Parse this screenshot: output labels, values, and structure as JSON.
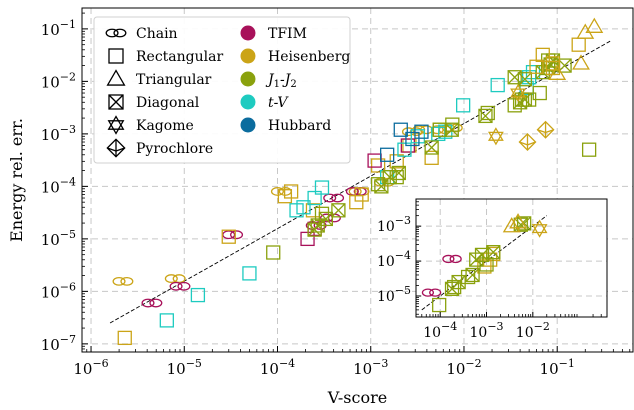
{
  "chart_data": {
    "type": "scatter",
    "xlabel": "V-score",
    "ylabel": "Energy rel. err.",
    "xscale": "log",
    "yscale": "log",
    "xlim": [
      8e-07,
      0.65
    ],
    "ylim": [
      7e-08,
      0.25
    ],
    "x_ticks": [
      {
        "value": 1e-06,
        "mant": "10",
        "exp": "−6"
      },
      {
        "value": 1e-05,
        "mant": "10",
        "exp": "−5"
      },
      {
        "value": 0.0001,
        "mant": "10",
        "exp": "−4"
      },
      {
        "value": 0.001,
        "mant": "10",
        "exp": "−3"
      },
      {
        "value": 0.01,
        "mant": "10",
        "exp": "−2"
      },
      {
        "value": 0.1,
        "mant": "10",
        "exp": "−1"
      }
    ],
    "y_ticks": [
      {
        "value": 1e-07,
        "mant": "10",
        "exp": "−7"
      },
      {
        "value": 1e-06,
        "mant": "10",
        "exp": "−6"
      },
      {
        "value": 1e-05,
        "mant": "10",
        "exp": "−5"
      },
      {
        "value": 0.0001,
        "mant": "10",
        "exp": "−4"
      },
      {
        "value": 0.001,
        "mant": "10",
        "exp": "−3"
      },
      {
        "value": 0.01,
        "mant": "10",
        "exp": "−2"
      },
      {
        "value": 0.1,
        "mant": "10",
        "exp": "−1"
      }
    ],
    "grid": true,
    "fit_line": {
      "style": "dashed",
      "x": [
        1.6e-06,
        0.38
      ],
      "y": [
        2.5e-07,
        0.06
      ]
    },
    "legend": {
      "placement": "top-left",
      "shapes": [
        {
          "label": "Chain",
          "marker": "chain"
        },
        {
          "label": "Rectangular",
          "marker": "square"
        },
        {
          "label": "Triangular",
          "marker": "triangle"
        },
        {
          "label": "Diagonal",
          "marker": "diagonal"
        },
        {
          "label": "Kagome",
          "marker": "kagome"
        },
        {
          "label": "Pyrochlore",
          "marker": "pyrochlore"
        }
      ],
      "models": [
        {
          "label": "TFIM",
          "color": "#a8115a"
        },
        {
          "label": "Heisenberg",
          "color": "#cba417"
        },
        {
          "label": "J",
          "sub1": "1",
          "mid": "-J",
          "sub2": "2",
          "italic": true,
          "color": "#8aa10d"
        },
        {
          "label": "t-V",
          "italic": true,
          "color": "#1ecbc0"
        },
        {
          "label": "Hubbard",
          "color": "#0b6c9e"
        }
      ]
    },
    "series": [
      {
        "model": "Heisenberg",
        "marker": "chain",
        "points": [
          [
            2.2e-06,
            1.55e-06
          ],
          [
            8e-06,
            1.75e-06
          ],
          [
            0.00011,
            8e-05
          ],
          [
            0.00075,
            8e-05
          ],
          [
            0.0014,
            0.00012
          ],
          [
            0.0028,
            0.0011
          ],
          [
            0.0036,
            0.0012
          ],
          [
            0.0057,
            0.0012
          ],
          [
            0.0075,
            0.0013
          ]
        ]
      },
      {
        "model": "TFIM",
        "marker": "chain",
        "points": [
          [
            4.5e-06,
            6e-07
          ],
          [
            9e-06,
            1.25e-06
          ],
          [
            3.3e-05,
            1.2e-05
          ],
          [
            0.00026,
            1.8e-05
          ],
          [
            0.00037,
            2.5e-05
          ],
          [
            0.0004,
            6e-05
          ],
          [
            0.0007,
            8e-05
          ]
        ]
      },
      {
        "model": "Heisenberg",
        "marker": "square",
        "points": [
          [
            2.3e-06,
            1.3e-07
          ],
          [
            3e-05,
            1.1e-05
          ],
          [
            0.00012,
            6.5e-05
          ],
          [
            0.00014,
            8e-05
          ],
          [
            0.00024,
            3.5e-05
          ],
          [
            0.0007,
            5e-05
          ],
          [
            0.0008,
            7e-05
          ],
          [
            0.0012,
            0.00025
          ],
          [
            0.0019,
            0.0003
          ],
          [
            0.0026,
            0.0006
          ],
          [
            0.0045,
            0.00035
          ],
          [
            0.0055,
            0.0012
          ]
        ]
      },
      {
        "model": "TFIM",
        "marker": "square",
        "points": [
          [
            0.00021,
            1e-05
          ],
          [
            0.00025,
            1.55e-05
          ],
          [
            0.0011,
            0.00031
          ],
          [
            0.0025,
            0.0006
          ]
        ]
      },
      {
        "model": "t-V",
        "marker": "square",
        "points": [
          [
            6.5e-06,
            2.8e-07
          ],
          [
            1.4e-05,
            8.5e-07
          ],
          [
            5e-05,
            2.2e-06
          ],
          [
            0.00016,
            3.5e-05
          ],
          [
            0.00019,
            4e-05
          ],
          [
            0.00025,
            6e-05
          ],
          [
            0.0003,
            9.5e-05
          ],
          [
            0.0015,
            0.00015
          ],
          [
            0.0023,
            0.0005
          ],
          [
            0.0032,
            0.0009
          ],
          [
            0.0053,
            0.001
          ],
          [
            0.0063,
            0.0011
          ],
          [
            0.0098,
            0.0035
          ],
          [
            0.023,
            0.0085
          ],
          [
            0.047,
            0.0075
          ],
          [
            0.05,
            0.012
          ],
          [
            0.055,
            0.015
          ]
        ]
      },
      {
        "model": "Hubbard",
        "marker": "square",
        "points": [
          [
            0.0015,
            0.0004
          ],
          [
            0.0021,
            0.0012
          ],
          [
            0.0028,
            0.0008
          ],
          [
            0.0035,
            0.0011
          ]
        ]
      },
      {
        "model": "J1-J2",
        "marker": "square",
        "points": [
          [
            9e-05,
            5.5e-06
          ],
          [
            0.0003,
            3e-05
          ],
          [
            0.0012,
            0.00011
          ],
          [
            0.0019,
            0.00015
          ],
          [
            0.0055,
            0.0012
          ],
          [
            0.0075,
            0.0015
          ],
          [
            0.018,
            0.0025
          ],
          [
            0.035,
            0.0035
          ],
          [
            0.042,
            0.0045
          ],
          [
            0.05,
            0.0045
          ],
          [
            0.065,
            0.006
          ],
          [
            0.22,
            0.0005
          ],
          [
            0.08,
            0.025
          ]
        ]
      },
      {
        "model": "J1-J2",
        "marker": "diagonal",
        "points": [
          [
            0.00025,
            1.5e-05
          ],
          [
            0.00027,
            1.8e-05
          ],
          [
            0.00033,
            2.4e-05
          ],
          [
            0.00045,
            3.5e-05
          ],
          [
            0.0013,
            0.0001
          ],
          [
            0.0016,
            0.00015
          ],
          [
            0.002,
            0.00018
          ],
          [
            0.0045,
            0.00055
          ],
          [
            0.0074,
            0.0012
          ],
          [
            0.017,
            0.0022
          ],
          [
            0.04,
            0.004
          ],
          [
            0.045,
            0.0045
          ],
          [
            0.045,
            0.011
          ],
          [
            0.07,
            0.015
          ],
          [
            0.08,
            0.018
          ],
          [
            0.085,
            0.021
          ],
          [
            0.09,
            0.025
          ],
          [
            0.12,
            0.02
          ],
          [
            0.035,
            0.012
          ]
        ]
      },
      {
        "model": "Heisenberg",
        "marker": "triangle",
        "points": [
          [
            0.2,
            0.085
          ],
          [
            0.25,
            0.11
          ],
          [
            0.18,
            0.022
          ],
          [
            0.1,
            0.014
          ]
        ]
      },
      {
        "model": "Heisenberg",
        "marker": "kagome",
        "points": [
          [
            0.022,
            0.0009
          ],
          [
            0.038,
            0.006
          ]
        ]
      },
      {
        "model": "Heisenberg",
        "marker": "pyrochlore",
        "points": [
          [
            0.048,
            0.0007
          ],
          [
            0.075,
            0.0012
          ]
        ]
      },
      {
        "model": "Heisenberg",
        "marker": "square",
        "points": [
          [
            0.06,
            0.019
          ],
          [
            0.07,
            0.032
          ],
          [
            0.09,
            0.018
          ],
          [
            0.17,
            0.05
          ],
          [
            0.09,
            0.022
          ]
        ]
      }
    ],
    "inset": {
      "xlim": [
        3e-05,
        0.4
      ],
      "ylim": [
        2.5e-06,
        0.006
      ],
      "x_ticks": [
        {
          "value": 0.0001,
          "mant": "10",
          "exp": "−4"
        },
        {
          "value": 0.001,
          "mant": "10",
          "exp": "−3"
        },
        {
          "value": 0.01,
          "mant": "10",
          "exp": "−2"
        }
      ],
      "y_ticks": [
        {
          "value": 1e-05,
          "mant": "10",
          "exp": "−5"
        },
        {
          "value": 0.0001,
          "mant": "10",
          "exp": "−4"
        },
        {
          "value": 0.001,
          "mant": "10",
          "exp": "−3"
        }
      ],
      "fit_line": {
        "style": "dashed",
        "x": [
          4e-05,
          0.02
        ],
        "y": [
          4e-06,
          0.002
        ]
      },
      "series": [
        {
          "model": "TFIM",
          "marker": "chain",
          "points": [
            [
              6.5e-05,
              1.25e-05
            ],
            [
              0.00018,
              0.000115
            ]
          ]
        },
        {
          "model": "Heisenberg",
          "marker": "square",
          "points": [
            [
              0.0009,
              7e-05
            ],
            [
              0.0012,
              0.00011
            ],
            [
              0.0014,
              0.00016
            ]
          ]
        },
        {
          "model": "J1-J2",
          "marker": "square",
          "points": [
            [
              9.5e-05,
              5.5e-06
            ],
            [
              0.0002,
              1.8e-05
            ],
            [
              0.0004,
              3.5e-05
            ],
            [
              0.001,
              8e-05
            ]
          ]
        },
        {
          "model": "J1-J2",
          "marker": "diagonal",
          "points": [
            [
              0.00018,
              1.6e-05
            ],
            [
              0.00025,
              2.5e-05
            ],
            [
              0.0005,
              4e-05
            ],
            [
              0.0006,
              0.00011
            ],
            [
              0.0008,
              0.00015
            ],
            [
              0.0014,
              0.00018
            ],
            [
              0.0055,
              0.0011
            ],
            [
              0.0065,
              0.0012
            ]
          ]
        },
        {
          "model": "Heisenberg",
          "marker": "triangle",
          "points": [
            [
              0.0035,
              0.001
            ],
            [
              0.0048,
              0.0013
            ]
          ]
        },
        {
          "model": "Heisenberg",
          "marker": "kagome",
          "points": [
            [
              0.014,
              0.00085
            ]
          ]
        }
      ]
    }
  }
}
